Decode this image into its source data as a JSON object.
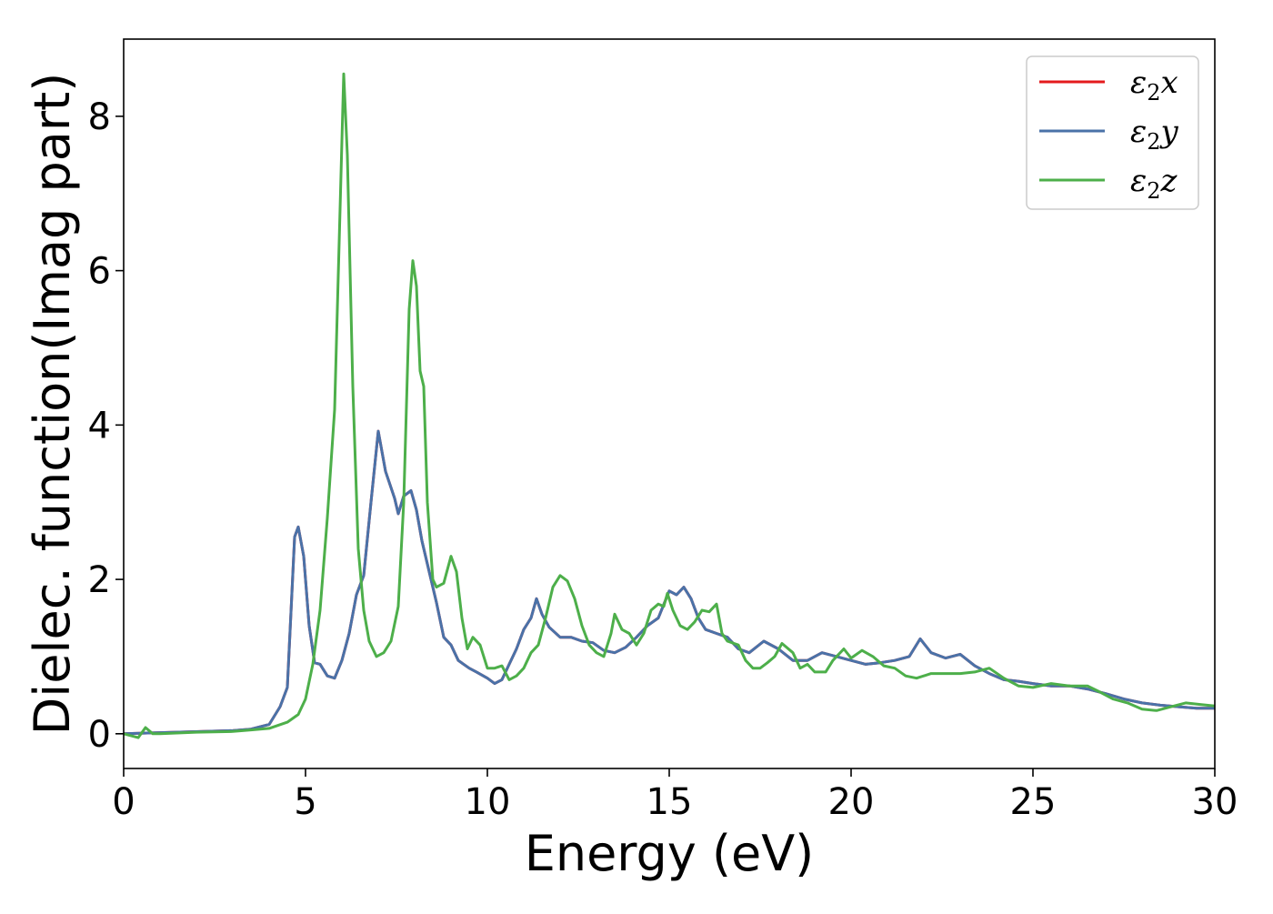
{
  "chart_data": {
    "type": "line",
    "xlabel": "Energy (eV)",
    "ylabel": "Dielec. function(Imag part)",
    "xlim": [
      0,
      30
    ],
    "ylim": [
      -0.45,
      9.0
    ],
    "xticks": [
      0,
      5,
      10,
      15,
      20,
      25,
      30
    ],
    "yticks": [
      0,
      2,
      4,
      6,
      8
    ],
    "xtick_labels": [
      "0",
      "5",
      "10",
      "15",
      "20",
      "25",
      "30"
    ],
    "ytick_labels": [
      "0",
      "2",
      "4",
      "6",
      "8"
    ],
    "grid": false,
    "legend_position": "top-right",
    "series": [
      {
        "name": "ε₂x",
        "legend_main": "ε",
        "legend_sub": "2",
        "legend_var": "x",
        "color": "#e41a1c",
        "same_as": "ε₂y",
        "points": [
          [
            0,
            0.0
          ],
          [
            3.0,
            0.04
          ],
          [
            3.5,
            0.06
          ],
          [
            4.0,
            0.12
          ],
          [
            4.3,
            0.35
          ],
          [
            4.5,
            0.6
          ],
          [
            4.7,
            2.55
          ],
          [
            4.8,
            2.68
          ],
          [
            4.95,
            2.3
          ],
          [
            5.1,
            1.4
          ],
          [
            5.25,
            0.92
          ],
          [
            5.4,
            0.9
          ],
          [
            5.6,
            0.75
          ],
          [
            5.8,
            0.72
          ],
          [
            6.0,
            0.95
          ],
          [
            6.2,
            1.3
          ],
          [
            6.4,
            1.8
          ],
          [
            6.6,
            2.05
          ],
          [
            6.8,
            3.0
          ],
          [
            7.0,
            3.92
          ],
          [
            7.2,
            3.4
          ],
          [
            7.45,
            3.05
          ],
          [
            7.55,
            2.85
          ],
          [
            7.7,
            3.08
          ],
          [
            7.9,
            3.15
          ],
          [
            8.05,
            2.9
          ],
          [
            8.2,
            2.5
          ],
          [
            8.4,
            2.1
          ],
          [
            8.6,
            1.7
          ],
          [
            8.8,
            1.25
          ],
          [
            9.0,
            1.15
          ],
          [
            9.2,
            0.95
          ],
          [
            9.5,
            0.85
          ],
          [
            9.7,
            0.8
          ],
          [
            10.0,
            0.72
          ],
          [
            10.2,
            0.65
          ],
          [
            10.4,
            0.7
          ],
          [
            10.6,
            0.9
          ],
          [
            10.8,
            1.1
          ],
          [
            11.0,
            1.35
          ],
          [
            11.2,
            1.5
          ],
          [
            11.35,
            1.75
          ],
          [
            11.5,
            1.55
          ],
          [
            11.7,
            1.38
          ],
          [
            12.0,
            1.25
          ],
          [
            12.3,
            1.25
          ],
          [
            12.6,
            1.2
          ],
          [
            12.9,
            1.18
          ],
          [
            13.2,
            1.08
          ],
          [
            13.5,
            1.05
          ],
          [
            13.8,
            1.12
          ],
          [
            14.1,
            1.25
          ],
          [
            14.4,
            1.4
          ],
          [
            14.7,
            1.5
          ],
          [
            15.0,
            1.85
          ],
          [
            15.2,
            1.8
          ],
          [
            15.4,
            1.9
          ],
          [
            15.6,
            1.75
          ],
          [
            15.8,
            1.5
          ],
          [
            16.0,
            1.35
          ],
          [
            16.3,
            1.3
          ],
          [
            16.6,
            1.25
          ],
          [
            16.9,
            1.1
          ],
          [
            17.2,
            1.05
          ],
          [
            17.6,
            1.2
          ],
          [
            18.0,
            1.1
          ],
          [
            18.4,
            0.95
          ],
          [
            18.8,
            0.95
          ],
          [
            19.2,
            1.05
          ],
          [
            19.6,
            1.0
          ],
          [
            20.0,
            0.95
          ],
          [
            20.4,
            0.9
          ],
          [
            20.8,
            0.92
          ],
          [
            21.2,
            0.95
          ],
          [
            21.6,
            1.0
          ],
          [
            21.9,
            1.23
          ],
          [
            22.2,
            1.05
          ],
          [
            22.6,
            0.98
          ],
          [
            23.0,
            1.03
          ],
          [
            23.4,
            0.88
          ],
          [
            23.8,
            0.78
          ],
          [
            24.2,
            0.7
          ],
          [
            24.6,
            0.68
          ],
          [
            25.0,
            0.65
          ],
          [
            25.5,
            0.62
          ],
          [
            26.0,
            0.62
          ],
          [
            26.5,
            0.58
          ],
          [
            27.0,
            0.52
          ],
          [
            27.5,
            0.45
          ],
          [
            28.0,
            0.4
          ],
          [
            28.5,
            0.37
          ],
          [
            29.0,
            0.35
          ],
          [
            29.5,
            0.33
          ],
          [
            30.0,
            0.33
          ]
        ]
      },
      {
        "name": "ε₂y",
        "legend_main": "ε",
        "legend_sub": "2",
        "legend_var": "y",
        "color": "#4a72a8",
        "points": [
          [
            0,
            0.0
          ],
          [
            3.0,
            0.04
          ],
          [
            3.5,
            0.06
          ],
          [
            4.0,
            0.12
          ],
          [
            4.3,
            0.35
          ],
          [
            4.5,
            0.6
          ],
          [
            4.7,
            2.55
          ],
          [
            4.8,
            2.68
          ],
          [
            4.95,
            2.3
          ],
          [
            5.1,
            1.4
          ],
          [
            5.25,
            0.92
          ],
          [
            5.4,
            0.9
          ],
          [
            5.6,
            0.75
          ],
          [
            5.8,
            0.72
          ],
          [
            6.0,
            0.95
          ],
          [
            6.2,
            1.3
          ],
          [
            6.4,
            1.8
          ],
          [
            6.6,
            2.05
          ],
          [
            6.8,
            3.0
          ],
          [
            7.0,
            3.92
          ],
          [
            7.2,
            3.4
          ],
          [
            7.45,
            3.05
          ],
          [
            7.55,
            2.85
          ],
          [
            7.7,
            3.08
          ],
          [
            7.9,
            3.15
          ],
          [
            8.05,
            2.9
          ],
          [
            8.2,
            2.5
          ],
          [
            8.4,
            2.1
          ],
          [
            8.6,
            1.7
          ],
          [
            8.8,
            1.25
          ],
          [
            9.0,
            1.15
          ],
          [
            9.2,
            0.95
          ],
          [
            9.5,
            0.85
          ],
          [
            9.7,
            0.8
          ],
          [
            10.0,
            0.72
          ],
          [
            10.2,
            0.65
          ],
          [
            10.4,
            0.7
          ],
          [
            10.6,
            0.9
          ],
          [
            10.8,
            1.1
          ],
          [
            11.0,
            1.35
          ],
          [
            11.2,
            1.5
          ],
          [
            11.35,
            1.75
          ],
          [
            11.5,
            1.55
          ],
          [
            11.7,
            1.38
          ],
          [
            12.0,
            1.25
          ],
          [
            12.3,
            1.25
          ],
          [
            12.6,
            1.2
          ],
          [
            12.9,
            1.18
          ],
          [
            13.2,
            1.08
          ],
          [
            13.5,
            1.05
          ],
          [
            13.8,
            1.12
          ],
          [
            14.1,
            1.25
          ],
          [
            14.4,
            1.4
          ],
          [
            14.7,
            1.5
          ],
          [
            15.0,
            1.85
          ],
          [
            15.2,
            1.8
          ],
          [
            15.4,
            1.9
          ],
          [
            15.6,
            1.75
          ],
          [
            15.8,
            1.5
          ],
          [
            16.0,
            1.35
          ],
          [
            16.3,
            1.3
          ],
          [
            16.6,
            1.25
          ],
          [
            16.9,
            1.1
          ],
          [
            17.2,
            1.05
          ],
          [
            17.6,
            1.2
          ],
          [
            18.0,
            1.1
          ],
          [
            18.4,
            0.95
          ],
          [
            18.8,
            0.95
          ],
          [
            19.2,
            1.05
          ],
          [
            19.6,
            1.0
          ],
          [
            20.0,
            0.95
          ],
          [
            20.4,
            0.9
          ],
          [
            20.8,
            0.92
          ],
          [
            21.2,
            0.95
          ],
          [
            21.6,
            1.0
          ],
          [
            21.9,
            1.23
          ],
          [
            22.2,
            1.05
          ],
          [
            22.6,
            0.98
          ],
          [
            23.0,
            1.03
          ],
          [
            23.4,
            0.88
          ],
          [
            23.8,
            0.78
          ],
          [
            24.2,
            0.7
          ],
          [
            24.6,
            0.68
          ],
          [
            25.0,
            0.65
          ],
          [
            25.5,
            0.62
          ],
          [
            26.0,
            0.62
          ],
          [
            26.5,
            0.58
          ],
          [
            27.0,
            0.52
          ],
          [
            27.5,
            0.45
          ],
          [
            28.0,
            0.4
          ],
          [
            28.5,
            0.37
          ],
          [
            29.0,
            0.35
          ],
          [
            29.5,
            0.33
          ],
          [
            30.0,
            0.33
          ]
        ]
      },
      {
        "name": "ε₂z",
        "legend_main": "ε",
        "legend_sub": "2",
        "legend_var": "z",
        "color": "#4daf4a",
        "points": [
          [
            0,
            0.0
          ],
          [
            0.4,
            -0.05
          ],
          [
            0.6,
            0.08
          ],
          [
            0.8,
            0.0
          ],
          [
            1.0,
            0.0
          ],
          [
            2.0,
            0.02
          ],
          [
            3.0,
            0.03
          ],
          [
            3.5,
            0.05
          ],
          [
            4.0,
            0.07
          ],
          [
            4.5,
            0.15
          ],
          [
            4.8,
            0.25
          ],
          [
            5.0,
            0.45
          ],
          [
            5.2,
            0.9
          ],
          [
            5.4,
            1.6
          ],
          [
            5.6,
            2.8
          ],
          [
            5.8,
            4.2
          ],
          [
            5.95,
            6.8
          ],
          [
            6.05,
            8.55
          ],
          [
            6.15,
            7.5
          ],
          [
            6.3,
            4.5
          ],
          [
            6.45,
            2.4
          ],
          [
            6.6,
            1.6
          ],
          [
            6.75,
            1.2
          ],
          [
            6.95,
            1.0
          ],
          [
            7.15,
            1.05
          ],
          [
            7.35,
            1.2
          ],
          [
            7.55,
            1.65
          ],
          [
            7.7,
            3.0
          ],
          [
            7.85,
            5.5
          ],
          [
            7.95,
            6.13
          ],
          [
            8.05,
            5.8
          ],
          [
            8.15,
            4.7
          ],
          [
            8.25,
            4.5
          ],
          [
            8.35,
            3.0
          ],
          [
            8.5,
            2.0
          ],
          [
            8.6,
            1.9
          ],
          [
            8.8,
            1.95
          ],
          [
            9.0,
            2.3
          ],
          [
            9.15,
            2.1
          ],
          [
            9.3,
            1.5
          ],
          [
            9.45,
            1.1
          ],
          [
            9.6,
            1.25
          ],
          [
            9.8,
            1.15
          ],
          [
            10.0,
            0.85
          ],
          [
            10.2,
            0.85
          ],
          [
            10.4,
            0.88
          ],
          [
            10.6,
            0.7
          ],
          [
            10.8,
            0.75
          ],
          [
            11.0,
            0.85
          ],
          [
            11.2,
            1.05
          ],
          [
            11.4,
            1.15
          ],
          [
            11.6,
            1.5
          ],
          [
            11.8,
            1.9
          ],
          [
            12.0,
            2.05
          ],
          [
            12.2,
            1.98
          ],
          [
            12.4,
            1.75
          ],
          [
            12.6,
            1.4
          ],
          [
            12.8,
            1.15
          ],
          [
            13.0,
            1.05
          ],
          [
            13.2,
            1.0
          ],
          [
            13.4,
            1.3
          ],
          [
            13.5,
            1.55
          ],
          [
            13.7,
            1.35
          ],
          [
            13.9,
            1.3
          ],
          [
            14.1,
            1.15
          ],
          [
            14.3,
            1.3
          ],
          [
            14.5,
            1.6
          ],
          [
            14.7,
            1.68
          ],
          [
            14.85,
            1.65
          ],
          [
            14.95,
            1.82
          ],
          [
            15.1,
            1.6
          ],
          [
            15.3,
            1.4
          ],
          [
            15.5,
            1.35
          ],
          [
            15.7,
            1.45
          ],
          [
            15.9,
            1.6
          ],
          [
            16.1,
            1.58
          ],
          [
            16.3,
            1.68
          ],
          [
            16.45,
            1.3
          ],
          [
            16.6,
            1.2
          ],
          [
            16.9,
            1.15
          ],
          [
            17.1,
            0.95
          ],
          [
            17.3,
            0.85
          ],
          [
            17.5,
            0.85
          ],
          [
            17.7,
            0.92
          ],
          [
            17.9,
            1.0
          ],
          [
            18.1,
            1.17
          ],
          [
            18.4,
            1.05
          ],
          [
            18.6,
            0.85
          ],
          [
            18.8,
            0.9
          ],
          [
            19.0,
            0.8
          ],
          [
            19.3,
            0.8
          ],
          [
            19.5,
            0.95
          ],
          [
            19.8,
            1.1
          ],
          [
            20.0,
            0.98
          ],
          [
            20.3,
            1.08
          ],
          [
            20.6,
            1.0
          ],
          [
            20.9,
            0.88
          ],
          [
            21.2,
            0.85
          ],
          [
            21.5,
            0.75
          ],
          [
            21.8,
            0.72
          ],
          [
            22.2,
            0.78
          ],
          [
            22.6,
            0.78
          ],
          [
            23.0,
            0.78
          ],
          [
            23.4,
            0.8
          ],
          [
            23.8,
            0.85
          ],
          [
            24.2,
            0.72
          ],
          [
            24.6,
            0.62
          ],
          [
            25.0,
            0.6
          ],
          [
            25.5,
            0.65
          ],
          [
            26.0,
            0.62
          ],
          [
            26.5,
            0.62
          ],
          [
            26.8,
            0.55
          ],
          [
            27.2,
            0.45
          ],
          [
            27.6,
            0.4
          ],
          [
            28.0,
            0.32
          ],
          [
            28.4,
            0.3
          ],
          [
            28.8,
            0.35
          ],
          [
            29.2,
            0.4
          ],
          [
            29.6,
            0.38
          ],
          [
            30.0,
            0.36
          ]
        ]
      }
    ]
  }
}
